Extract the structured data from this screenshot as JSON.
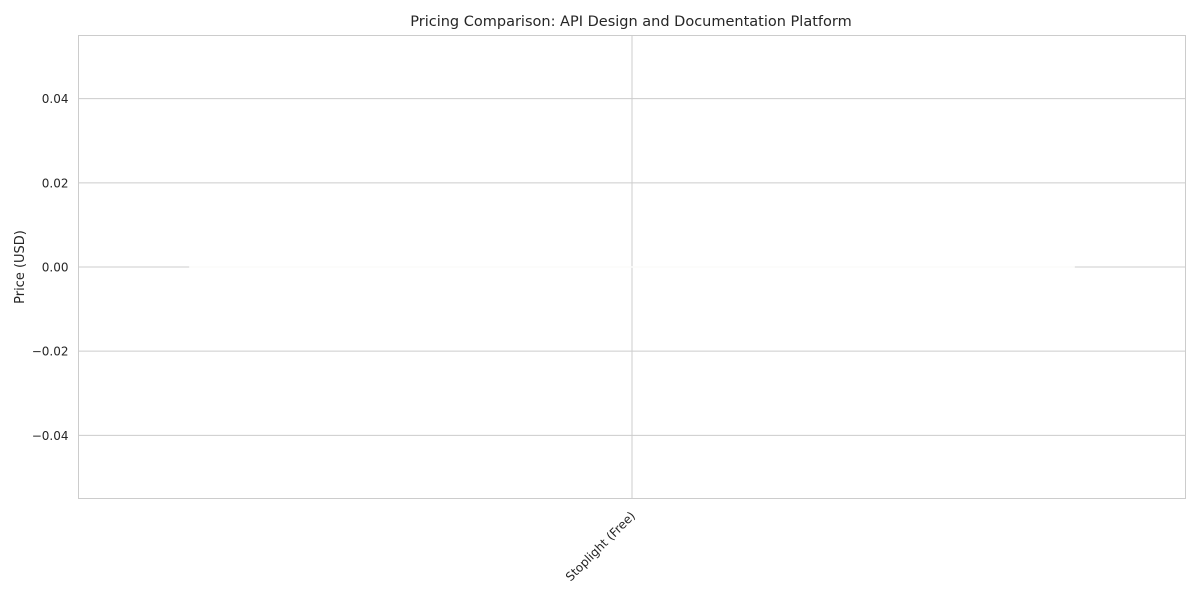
{
  "chart_data": {
    "type": "bar",
    "title": "Pricing Comparison: API Design and Documentation Platform",
    "xlabel": "",
    "ylabel": "Price (USD)",
    "categories": [
      "Stoplight (Free)"
    ],
    "values": [
      0
    ],
    "ylim": [
      -0.055,
      0.055
    ],
    "yticks": [
      -0.04,
      -0.02,
      0.0,
      0.02,
      0.04
    ],
    "ytick_labels": [
      "−0.04",
      "−0.02",
      "0.00",
      "0.02",
      "0.04"
    ],
    "grid": true,
    "legend": "none",
    "colors": {
      "bar": "#fcfbfa",
      "grid": "#cccccc",
      "spine": "#cccccc",
      "text": "#262626",
      "background": "#ffffff"
    }
  }
}
